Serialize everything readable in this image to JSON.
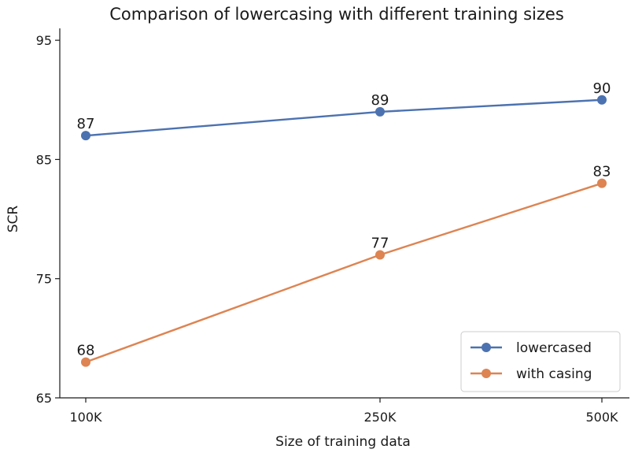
{
  "chart_data": {
    "type": "line",
    "title": "Comparison of lowercasing with different training sizes",
    "xlabel": "Size of training data",
    "ylabel": "SCR",
    "categories": [
      "100K",
      "250K",
      "500K"
    ],
    "ylim": [
      65,
      96
    ],
    "yticks": [
      65,
      75,
      85,
      95
    ],
    "grid": false,
    "legend_position": "lower-right",
    "series": [
      {
        "name": "lowercased",
        "color": "#4c72b0",
        "values": [
          87,
          89,
          90
        ]
      },
      {
        "name": "with casing",
        "color": "#dd8452",
        "values": [
          68,
          77,
          83
        ]
      }
    ]
  }
}
